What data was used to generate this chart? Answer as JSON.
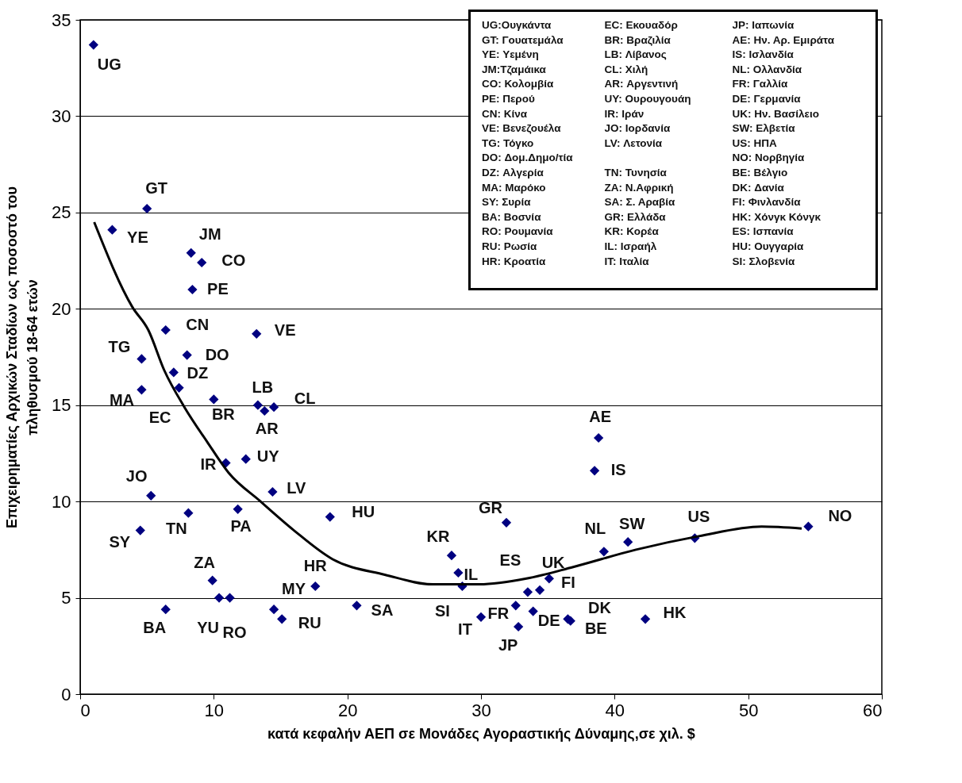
{
  "chart_data": {
    "type": "scatter",
    "xlabel": "κατά κεφαλήν ΑΕΠ σε Μονάδες Αγοραστικής Δύναμης,σε χιλ. $",
    "ylabel": "Επιχειρηματίες Αρχικών Σταδίων ως ποσοστό του\nπληθυσμού 18-64 ετών",
    "xlim": [
      0,
      60
    ],
    "xticks": [
      0,
      10,
      20,
      30,
      40,
      50,
      60
    ],
    "ylim": [
      0,
      35
    ],
    "yticks": [
      0,
      5,
      10,
      15,
      20,
      25,
      30,
      35
    ],
    "grid": "y",
    "series": [
      {
        "marker": "diamond",
        "color": "#000080",
        "x": [
          1.0,
          5.0,
          2.4,
          8.3,
          9.1,
          8.4,
          6.4,
          13.2,
          4.6,
          8.0,
          7.0,
          4.6,
          7.4,
          10.0,
          13.3,
          13.8,
          14.5,
          12.4,
          10.9,
          14.4,
          5.3,
          8.1,
          11.8,
          18.7,
          4.5,
          9.9,
          10.4,
          11.2,
          17.6,
          14.5,
          15.1,
          6.4,
          20.7,
          38.8,
          38.5,
          31.9,
          27.8,
          28.3,
          28.6,
          33.5,
          34.4,
          35.1,
          32.6,
          33.9,
          30.0,
          32.8,
          36.5,
          36.7,
          42.3,
          39.2,
          41.0,
          46.0,
          54.5
        ],
        "values": [
          33.7,
          25.2,
          24.1,
          22.9,
          22.4,
          21.0,
          18.9,
          18.7,
          17.4,
          17.6,
          16.7,
          15.8,
          15.9,
          15.3,
          15.0,
          14.7,
          14.9,
          12.2,
          12.0,
          10.5,
          10.3,
          9.4,
          9.6,
          9.2,
          8.5,
          5.9,
          5.0,
          5.0,
          5.6,
          4.4,
          3.9,
          4.4,
          4.6,
          13.3,
          11.6,
          8.9,
          7.2,
          6.3,
          5.6,
          5.3,
          5.4,
          6.0,
          4.6,
          4.3,
          4.0,
          3.5,
          3.9,
          3.8,
          3.9,
          7.4,
          7.9,
          8.1,
          8.7
        ],
        "value_labels": [
          "UG",
          "GT",
          "YE",
          "JM",
          "CO",
          "PE",
          "CN",
          "VE",
          "TG",
          "DO",
          "DZ",
          "MA",
          "EC",
          "BR",
          "LB",
          "AR",
          "CL",
          "UY",
          "IR",
          "LV",
          "JO",
          "TN",
          "PA",
          "HU",
          "SY",
          "ZA",
          "YU",
          "RO",
          "HR",
          "MY",
          "RU",
          "BA",
          "SA",
          "AE",
          "IS",
          "GR",
          "KR",
          "IL",
          "SI",
          "ES",
          "UK",
          "FI",
          "FR",
          "DE",
          "IT",
          "JP",
          "DK",
          "BE",
          "HK",
          "NL",
          "SW",
          "US",
          "NO"
        ]
      },
      {
        "type": "line",
        "color": "#000000",
        "line_style": "solid",
        "x": [
          1.05,
          3.9,
          5.1,
          6.3,
          7.8,
          9.5,
          11.1,
          13.5,
          16.0,
          18.9,
          22.8,
          26.4,
          29.9,
          33.4,
          36.9,
          41.6,
          46.3,
          51.0,
          54.0
        ],
        "values": [
          24.5,
          20.1,
          18.9,
          16.8,
          14.9,
          13.1,
          11.5,
          10.0,
          8.5,
          7.0,
          6.2,
          5.7,
          5.7,
          6.0,
          6.6,
          7.5,
          8.2,
          8.7,
          8.6
        ]
      }
    ],
    "annotations": [
      "UG:Ουγκάντα",
      "EC: Εκουαδόρ",
      "JP: Ιαπωνία",
      "GT: Γουατεμάλα",
      "BR: Βραζιλία",
      "AE: Ην. Αρ. Εμιράτα",
      "YE: Υεμένη",
      "LB: Λίβανος",
      "IS: Ισλανδία",
      "JM:Τζαμάικα",
      "CL: Χιλή",
      "NL: Ολλανδία",
      "CO: Κολομβία",
      "AR: Αργεντινή",
      "FR: Γαλλία",
      "PE: Περού",
      "UY: Ουρουγουάη",
      "DE: Γερμανία",
      "CN: Κίνα",
      "IR: Ιράν",
      "UK: Ην. Βασίλειο",
      "VE: Βενεζουέλα",
      "JO: Ιορδανία",
      "SW: Ελβετία",
      "TG: Τόγκο",
      "LV: Λετονία",
      "US: ΗΠΑ",
      "DO: Δομ.Δημο/τία",
      "NO: Νορβηγία",
      "DZ: Αλγερία",
      "TN: Τυνησία",
      "BE: Βέλγιο",
      "MA: Μαρόκο",
      "ZA: Ν.Αφρική",
      "DK: Δανία",
      "SY: Συρία",
      "SA: Σ. Αραβία",
      "FI: Φινλανδία",
      "BA: Βοσνία",
      "GR: Ελλάδα",
      "HK: Χόνγκ Κόνγκ",
      "RO: Ρουμανία",
      "KR: Κορέα",
      "ES: Ισπανία",
      "RU: Ρωσία",
      "IL: Ισραήλ",
      "HU: Ουγγαρία",
      "HR: Κροατία",
      "IT: Ιταλία",
      "SI: Σλοβενία"
    ]
  }
}
